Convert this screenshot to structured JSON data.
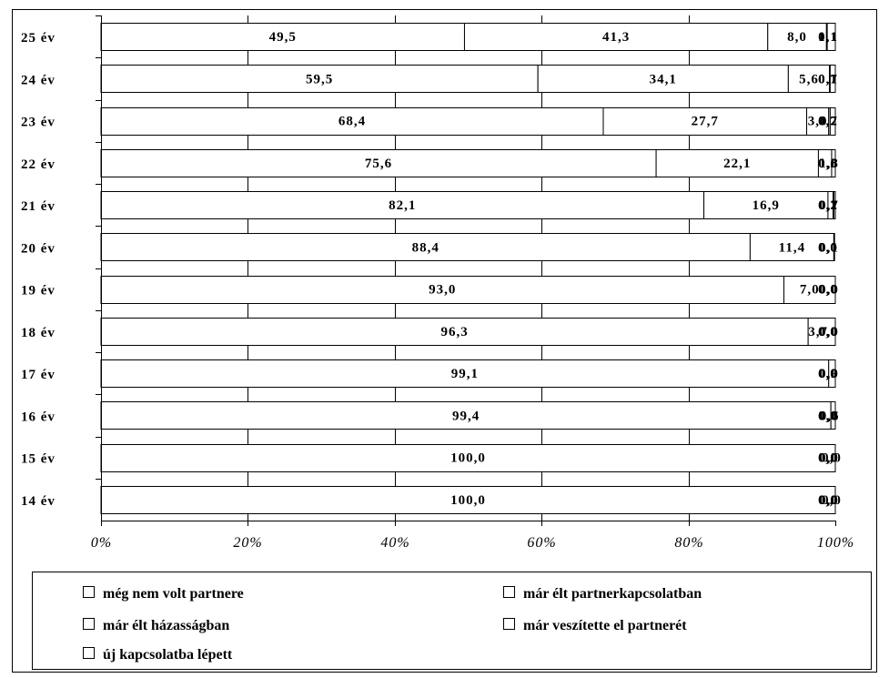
{
  "chart_data": {
    "type": "bar",
    "orientation": "horizontal",
    "stacked": "percent",
    "categories": [
      "25 év",
      "24 év",
      "23 év",
      "22 év",
      "21 év",
      "20 év",
      "19 év",
      "18 év",
      "17 év",
      "16 év",
      "15 év",
      "14 év"
    ],
    "series": [
      {
        "name": "még nem volt partnere",
        "values": [
          49.5,
          59.5,
          68.4,
          75.6,
          82.1,
          88.4,
          93.0,
          96.3,
          99.1,
          99.4,
          100.0,
          100.0
        ],
        "labels": [
          "49,5",
          "59,5",
          "68,4",
          "75,6",
          "82,1",
          "88,4",
          "93,0",
          "96,3",
          "99,1",
          "99,4",
          "100,0",
          "100,0"
        ]
      },
      {
        "name": "már élt partnerkapcsolatban",
        "values": [
          41.3,
          34.1,
          27.7,
          22.1,
          16.9,
          11.4,
          7.0,
          3.7,
          0.9,
          0.6,
          0.0,
          0.0
        ],
        "labels": [
          "41,3",
          "34,1",
          "27,7",
          "22,1",
          "16,9",
          "11,4",
          "7,0",
          "3,7",
          "0,9",
          "0,6",
          "0,0",
          "0,0"
        ]
      },
      {
        "name": "már élt házasságban",
        "values": [
          8.0,
          5.6,
          3.0,
          1.8,
          0.7,
          0.1,
          0.0,
          0.0,
          0.0,
          0.0,
          0.0,
          0.0
        ],
        "labels": [
          "8,0",
          "5,6",
          "3,0",
          "1,8",
          "0,7",
          "0,1",
          "0,0",
          "0,0",
          "0,0",
          "0,0",
          "0,0",
          "0,0"
        ]
      },
      {
        "name": "már veszítette el partnerét",
        "values": [
          0.1,
          0.1,
          0.2,
          0.0,
          0.1,
          0.0,
          0.0,
          0.0,
          0.0,
          0.0,
          0.0,
          0.0
        ],
        "labels": [
          "0,1",
          "0,1",
          "0,2",
          "0,0",
          "0,1",
          "0,0",
          "0,0",
          "0,0",
          "0,0",
          "0,0",
          "0,0",
          "0,0"
        ]
      },
      {
        "name": "új kapcsolatba lépett",
        "values": [
          1.1,
          0.7,
          0.7,
          0.5,
          0.2,
          0.0,
          0.0,
          0.0,
          0.0,
          0.0,
          0.0,
          0.0
        ],
        "labels": [
          "1,1",
          "0,7",
          "0,7",
          "0,5",
          "0,2",
          "0,0",
          "0,0",
          "0,0",
          "0,0",
          "0,0",
          "0,0",
          "0,0"
        ]
      }
    ],
    "xlim": [
      0,
      100
    ],
    "xticks": [
      "0%",
      "20%",
      "40%",
      "60%",
      "80%",
      "100%"
    ],
    "bar_fill": "#ffffff",
    "bar_stroke": "#000000",
    "grid": "vertical",
    "legend_position": "bottom",
    "title": "",
    "xlabel": "",
    "ylabel": ""
  }
}
